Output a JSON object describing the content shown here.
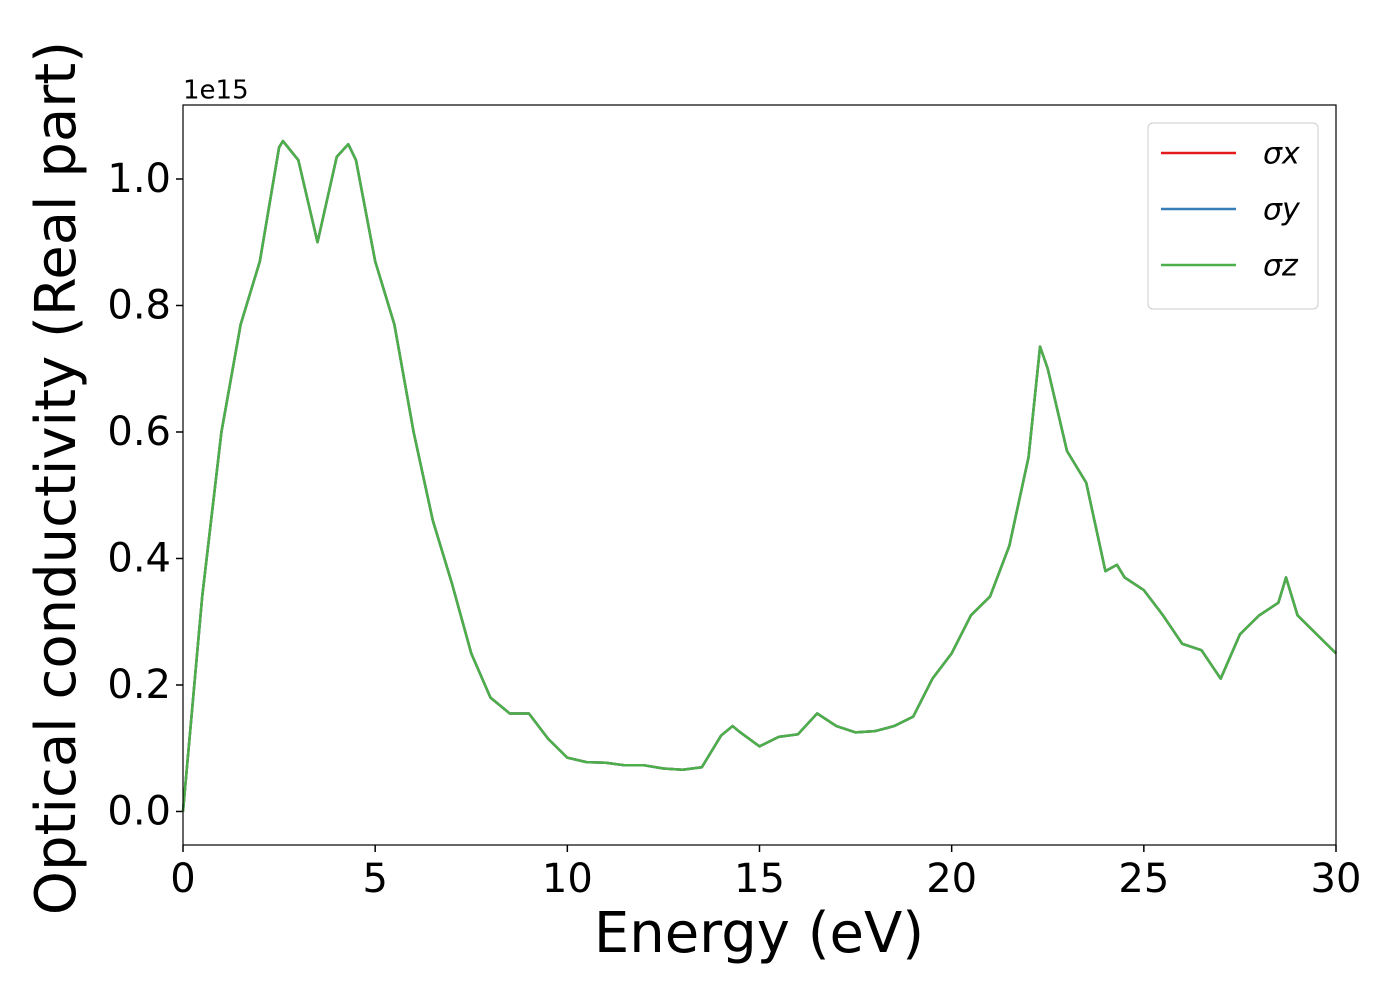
{
  "chart_data": {
    "type": "line",
    "xlabel": "Energy (eV)",
    "ylabel": "Optical conductivity (Real part)",
    "offset_text": "1e15",
    "x": [
      0,
      0.5,
      1,
      1.5,
      2,
      2.5,
      2.6,
      3,
      3.5,
      4,
      4.3,
      4.5,
      5,
      5.5,
      6,
      6.5,
      7,
      7.5,
      8,
      8.5,
      9,
      9.5,
      10,
      10.5,
      11,
      11.5,
      12,
      12.5,
      13,
      13.5,
      14,
      14.3,
      14.5,
      15,
      15.5,
      16,
      16.5,
      17,
      17.5,
      18,
      18.5,
      19,
      19.5,
      20,
      20.5,
      21,
      21.5,
      22,
      22.3,
      22.5,
      23,
      23.5,
      24,
      24.3,
      24.5,
      25,
      25.5,
      26,
      26.5,
      27,
      27.5,
      28,
      28.5,
      28.7,
      29,
      29.5,
      30
    ],
    "series": [
      {
        "name": "σx",
        "color": "#e41a1c",
        "values": [
          0,
          0.34,
          0.6,
          0.77,
          0.87,
          1.05,
          1.06,
          1.03,
          0.9,
          1.035,
          1.055,
          1.03,
          0.87,
          0.77,
          0.6,
          0.46,
          0.36,
          0.25,
          0.18,
          0.155,
          0.155,
          0.115,
          0.085,
          0.078,
          0.077,
          0.073,
          0.073,
          0.068,
          0.066,
          0.07,
          0.12,
          0.135,
          0.125,
          0.103,
          0.118,
          0.122,
          0.155,
          0.135,
          0.125,
          0.127,
          0.135,
          0.15,
          0.21,
          0.25,
          0.31,
          0.34,
          0.42,
          0.56,
          0.735,
          0.7,
          0.57,
          0.52,
          0.38,
          0.39,
          0.37,
          0.35,
          0.31,
          0.265,
          0.255,
          0.21,
          0.28,
          0.31,
          0.33,
          0.37,
          0.31,
          0.28,
          0.25
        ]
      },
      {
        "name": "σy",
        "color": "#377eb8",
        "values": [
          0,
          0.34,
          0.6,
          0.77,
          0.87,
          1.05,
          1.06,
          1.03,
          0.9,
          1.035,
          1.055,
          1.03,
          0.87,
          0.77,
          0.6,
          0.46,
          0.36,
          0.25,
          0.18,
          0.155,
          0.155,
          0.115,
          0.085,
          0.078,
          0.077,
          0.073,
          0.073,
          0.068,
          0.066,
          0.07,
          0.12,
          0.135,
          0.125,
          0.103,
          0.118,
          0.122,
          0.155,
          0.135,
          0.125,
          0.127,
          0.135,
          0.15,
          0.21,
          0.25,
          0.31,
          0.34,
          0.42,
          0.56,
          0.735,
          0.7,
          0.57,
          0.52,
          0.38,
          0.39,
          0.37,
          0.35,
          0.31,
          0.265,
          0.255,
          0.21,
          0.28,
          0.31,
          0.33,
          0.37,
          0.31,
          0.28,
          0.25
        ]
      },
      {
        "name": "σz",
        "color": "#4daf4a",
        "values": [
          0,
          0.34,
          0.6,
          0.77,
          0.87,
          1.05,
          1.06,
          1.03,
          0.9,
          1.035,
          1.055,
          1.03,
          0.87,
          0.77,
          0.6,
          0.46,
          0.36,
          0.25,
          0.18,
          0.155,
          0.155,
          0.115,
          0.085,
          0.078,
          0.077,
          0.073,
          0.073,
          0.068,
          0.066,
          0.07,
          0.12,
          0.135,
          0.125,
          0.103,
          0.118,
          0.122,
          0.155,
          0.135,
          0.125,
          0.127,
          0.135,
          0.15,
          0.21,
          0.25,
          0.31,
          0.34,
          0.42,
          0.56,
          0.735,
          0.7,
          0.57,
          0.52,
          0.38,
          0.39,
          0.37,
          0.35,
          0.31,
          0.265,
          0.255,
          0.21,
          0.28,
          0.31,
          0.33,
          0.37,
          0.31,
          0.28,
          0.25
        ]
      }
    ],
    "xlim": [
      0,
      30
    ],
    "xticks": [
      0,
      5,
      10,
      15,
      20,
      25,
      30
    ],
    "ylim": [
      -0.053,
      1.117
    ],
    "yticks": [
      {
        "value": 0,
        "label": "0.0"
      },
      {
        "value": 0.2,
        "label": "0.2"
      },
      {
        "value": 0.4,
        "label": "0.4"
      },
      {
        "value": 0.6,
        "label": "0.6"
      },
      {
        "value": 0.8,
        "label": "0.8"
      },
      {
        "value": 1,
        "label": "1.0"
      }
    ],
    "legend": "upper right",
    "grid": false
  }
}
